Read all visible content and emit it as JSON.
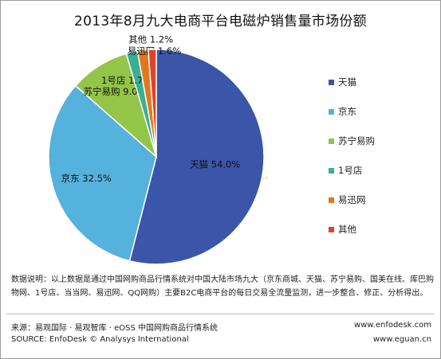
{
  "chart_data": {
    "type": "pie",
    "title": "2013年8月九大电商平台电磁炉销售量市场份额",
    "categories": [
      "天猫",
      "京东",
      "苏宁易购",
      "1号店",
      "易迅网",
      "其他"
    ],
    "values": [
      54.0,
      32.5,
      9.0,
      1.7,
      1.6,
      1.2
    ],
    "data_labels": [
      "天猫 54.0%",
      "京东 32.5%",
      "苏宁易购 9.0%",
      "1号店 1.7%",
      "易迅网 1.6%",
      "其他 1.2%"
    ],
    "colors": [
      "#3b55a8",
      "#55b2dc",
      "#93c548",
      "#3aaf94",
      "#e2781e",
      "#d8462a"
    ],
    "legend_position": "right",
    "watermark": "易观智库"
  },
  "legend": [
    {
      "label": "天猫",
      "color": "#3b55a8"
    },
    {
      "label": "京东",
      "color": "#55b2dc"
    },
    {
      "label": "苏宁易购",
      "color": "#93c548"
    },
    {
      "label": "1号店",
      "color": "#3aaf94"
    },
    {
      "label": "易迅网",
      "color": "#e2781e"
    },
    {
      "label": "其他",
      "color": "#d8462a"
    }
  ],
  "footer": {
    "note": "数据说明：以上数据是通过中国网购商品行情系统对中国大陆市场九大（京东商城、天猫、苏宁易购、国美在线、库巴购物网、1号店、当当网、易迅网、QQ网购）主要B2C电商平台的每日交易全流量监测，进一步整合、修正、分析得出。",
    "source_cn": "来源：易观国际 · 易观智库 · eOSS 中国网购商品行情系统",
    "source_en": "SOURCE: EnfoDesk © Analysys International",
    "url1": "www.enfodesk.com",
    "url2": "www.eguan.cn"
  }
}
